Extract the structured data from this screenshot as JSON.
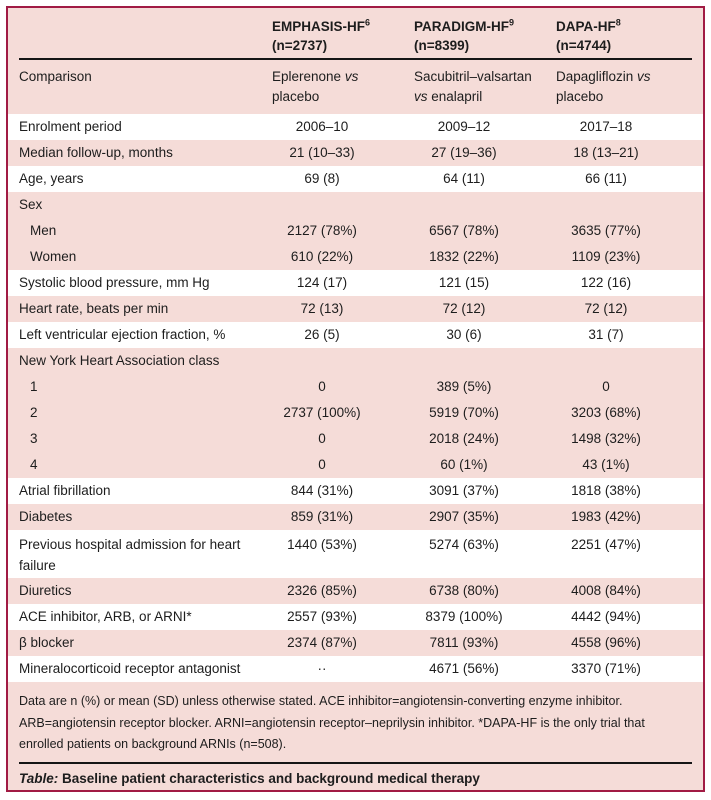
{
  "colors": {
    "frame_border": "#a11b44",
    "stripe_pink": "#f5dcd8",
    "stripe_white": "#ffffff",
    "text": "#1d1d1d",
    "rule": "#151515"
  },
  "header": {
    "columns": [
      {
        "label": "EMPHASIS-HF",
        "ref": "6",
        "n": "(n=2737)"
      },
      {
        "label": "PARADIGM-HF",
        "ref": "9",
        "n": "(n=8399)"
      },
      {
        "label": "DAPA-HF",
        "ref": "8",
        "n": "(n=4744)"
      }
    ]
  },
  "rows": [
    {
      "label": "Comparison",
      "kind": "comparison",
      "shade": "pink",
      "values": [
        "Eplerenone vs placebo",
        "Sacubitril–valsartan vs enalapril",
        "Dapagliflozin vs placebo"
      ]
    },
    {
      "label": "Enrolment period",
      "kind": "single",
      "shade": "white",
      "values": [
        "2006–10",
        "2009–12",
        "2017–18"
      ]
    },
    {
      "label": "Median follow-up, months",
      "kind": "single",
      "shade": "pink",
      "values": [
        "21 (10–33)",
        "27 (19–36)",
        "18 (13–21)"
      ]
    },
    {
      "label": "Age, years",
      "kind": "single",
      "shade": "white",
      "values": [
        "69 (8)",
        "64 (11)",
        "66 (11)"
      ]
    },
    {
      "label": "Sex",
      "kind": "group",
      "shade": "pink",
      "values": [
        "",
        "",
        ""
      ]
    },
    {
      "label": "Men",
      "kind": "sub",
      "shade": "pink",
      "values": [
        "2127 (78%)",
        "6567 (78%)",
        "3635 (77%)"
      ]
    },
    {
      "label": "Women",
      "kind": "sub",
      "shade": "pink",
      "values": [
        "610 (22%)",
        "1832 (22%)",
        "1109 (23%)"
      ]
    },
    {
      "label": "Systolic blood pressure, mm Hg",
      "kind": "single",
      "shade": "white",
      "values": [
        "124 (17)",
        "121 (15)",
        "122 (16)"
      ]
    },
    {
      "label": "Heart rate, beats per min",
      "kind": "single",
      "shade": "pink",
      "values": [
        "72 (13)",
        "72 (12)",
        "72 (12)"
      ]
    },
    {
      "label": "Left ventricular ejection fraction, %",
      "kind": "single",
      "shade": "white",
      "values": [
        "26 (5)",
        "30 (6)",
        "31 (7)"
      ]
    },
    {
      "label": "New York Heart Association class",
      "kind": "group",
      "shade": "pink",
      "values": [
        "",
        "",
        ""
      ]
    },
    {
      "label": "1",
      "kind": "sub",
      "shade": "pink",
      "values": [
        "0",
        "389 (5%)",
        "0"
      ]
    },
    {
      "label": "2",
      "kind": "sub",
      "shade": "pink",
      "values": [
        "2737 (100%)",
        "5919 (70%)",
        "3203 (68%)"
      ]
    },
    {
      "label": "3",
      "kind": "sub",
      "shade": "pink",
      "values": [
        "0",
        "2018 (24%)",
        "1498 (32%)"
      ]
    },
    {
      "label": "4",
      "kind": "sub",
      "shade": "pink",
      "values": [
        "0",
        "60 (1%)",
        "43 (1%)"
      ]
    },
    {
      "label": "Atrial fibrillation",
      "kind": "single",
      "shade": "white",
      "values": [
        "844 (31%)",
        "3091 (37%)",
        "1818 (38%)"
      ]
    },
    {
      "label": "Diabetes",
      "kind": "single",
      "shade": "pink",
      "values": [
        "859 (31%)",
        "2907 (35%)",
        "1983 (42%)"
      ]
    },
    {
      "label": "Previous hospital admission for heart failure",
      "kind": "tall",
      "shade": "white",
      "values": [
        "1440 (53%)",
        "5274 (63%)",
        "2251 (47%)"
      ]
    },
    {
      "label": "Diuretics",
      "kind": "single",
      "shade": "pink",
      "values": [
        "2326 (85%)",
        "6738 (80%)",
        "4008 (84%)"
      ]
    },
    {
      "label": "ACE inhibitor, ARB, or ARNI*",
      "kind": "single",
      "shade": "white",
      "values": [
        "2557 (93%)",
        "8379 (100%)",
        "4442 (94%)"
      ]
    },
    {
      "label": "β blocker",
      "kind": "single",
      "shade": "pink",
      "values": [
        "2374 (87%)",
        "7811 (93%)",
        "4558 (96%)"
      ]
    },
    {
      "label": "Mineralocorticoid receptor antagonist",
      "kind": "single",
      "shade": "white",
      "values": [
        "··",
        "4671 (56%)",
        "3370 (71%)"
      ]
    }
  ],
  "footnote": "Data are n (%) or mean (SD) unless otherwise stated. ACE inhibitor=angiotensin-converting enzyme inhibitor. ARB=angiotensin receptor blocker. ARNI=angiotensin receptor–neprilysin inhibitor. *DAPA-HF is the only trial that enrolled patients on background ARNIs (n=508).",
  "caption": {
    "label": "Table:",
    "text": " Baseline patient characteristics and background medical therapy"
  }
}
